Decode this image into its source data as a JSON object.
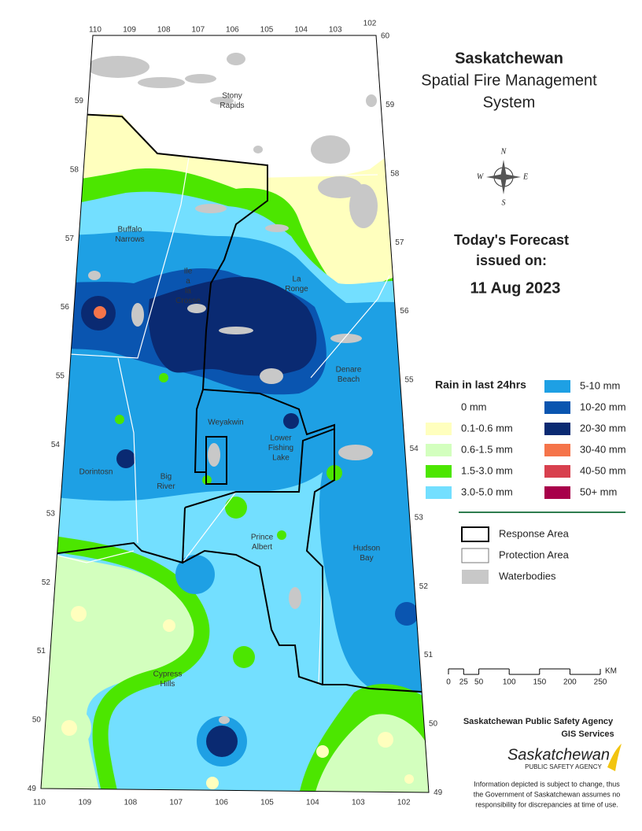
{
  "title": {
    "lines": [
      "Saskatchewan",
      "Spatial Fire Management",
      "System"
    ]
  },
  "forecast": {
    "heading": [
      "Today's Forecast",
      "issued on:"
    ],
    "date": "11 Aug 2023"
  },
  "compass": [
    "N",
    "E",
    "S",
    "W"
  ],
  "legend": {
    "title": "Rain in last 24hrs",
    "items": [
      {
        "label": "0 mm",
        "color": "#ffffff"
      },
      {
        "label": "0.1-0.6 mm",
        "color": "#ffffbe"
      },
      {
        "label": "0.6-1.5 mm",
        "color": "#d3ffbe"
      },
      {
        "label": "1.5-3.0 mm",
        "color": "#4ce600"
      },
      {
        "label": "3.0-5.0 mm",
        "color": "#73dfff"
      },
      {
        "label": "5-10 mm",
        "color": "#1ea0e4"
      },
      {
        "label": "10-20 mm",
        "color": "#0a55b0"
      },
      {
        "label": "20-30 mm",
        "color": "#0a2a72"
      },
      {
        "label": "30-40 mm",
        "color": "#f5744a"
      },
      {
        "label": "40-50 mm",
        "color": "#d8404e"
      },
      {
        "label": "50+ mm",
        "color": "#a8004a"
      }
    ]
  },
  "boundary_legend": [
    {
      "label": "Response Area"
    },
    {
      "label": "Protection Area"
    },
    {
      "label": "Waterbodies"
    }
  ],
  "scale_bar": {
    "ticks": [
      0,
      25,
      50,
      100,
      150,
      200,
      250
    ],
    "unit": "KM"
  },
  "agency": {
    "name": "Saskatchewan Public Safety Agency",
    "unit": "GIS  Services",
    "logo_title": "Saskatchewan",
    "logo_subtitle": "PUBLIC SAFETY AGENCY"
  },
  "disclaimer": [
    "Information depicted is subject to change, thus",
    "the Government of Saskatchewan assumes no",
    "responsibility for discrepancies at time of use."
  ],
  "places": [
    {
      "lines": [
        "Stony",
        "Rapids"
      ]
    },
    {
      "lines": [
        "Buffalo",
        "Narrows"
      ]
    },
    {
      "lines": [
        "Ile",
        "a",
        "la",
        "Crosse"
      ]
    },
    {
      "lines": [
        "La",
        "Ronge"
      ]
    },
    {
      "lines": [
        "Denare",
        "Beach"
      ]
    },
    {
      "lines": [
        "Weyakwin"
      ]
    },
    {
      "lines": [
        "Lower",
        "Fishing",
        "Lake"
      ]
    },
    {
      "lines": [
        "Dorintosn"
      ]
    },
    {
      "lines": [
        "Big",
        "River"
      ]
    },
    {
      "lines": [
        "Prince",
        "Albert"
      ]
    },
    {
      "lines": [
        "Hudson",
        "Bay"
      ]
    },
    {
      "lines": [
        "Cypress",
        "Hills"
      ]
    }
  ],
  "graticule": {
    "longitudes_top": [
      110,
      109,
      108,
      107,
      106,
      105,
      104,
      103,
      102
    ],
    "longitudes_bottom": [
      110,
      109,
      108,
      107,
      106,
      105,
      104,
      103,
      102
    ],
    "latitudes_left": [
      59,
      58,
      57,
      56,
      55,
      54,
      53,
      52,
      51,
      50,
      49
    ],
    "latitudes_right": [
      60,
      59,
      58,
      57,
      56,
      55,
      54,
      53,
      52,
      51,
      50,
      49
    ]
  }
}
